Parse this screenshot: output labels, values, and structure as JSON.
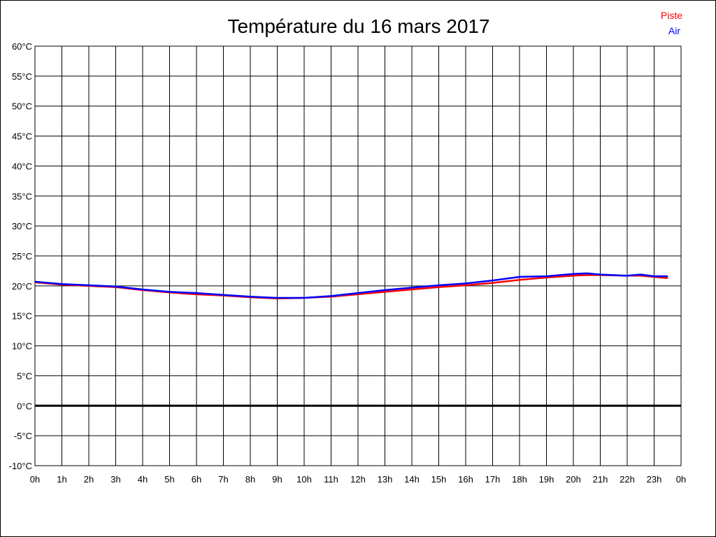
{
  "chart_data": {
    "type": "line",
    "title": "Température du 16 mars 2017",
    "xlabel": "",
    "ylabel": "",
    "x_ticks": [
      "0h",
      "1h",
      "2h",
      "3h",
      "4h",
      "5h",
      "6h",
      "7h",
      "8h",
      "9h",
      "10h",
      "11h",
      "12h",
      "13h",
      "14h",
      "15h",
      "16h",
      "17h",
      "18h",
      "19h",
      "20h",
      "21h",
      "22h",
      "23h",
      "0h"
    ],
    "y_ticks": [
      "60°C",
      "55°C",
      "50°C",
      "45°C",
      "40°C",
      "35°C",
      "30°C",
      "25°C",
      "20°C",
      "15°C",
      "10°C",
      "5°C",
      "0°C",
      "-5°C",
      "-10°C"
    ],
    "xlim": [
      0,
      24
    ],
    "ylim": [
      -10,
      60
    ],
    "grid": true,
    "legend": "top-right",
    "x": [
      0,
      1,
      2,
      3,
      4,
      5,
      6,
      7,
      8,
      9,
      10,
      11,
      12,
      13,
      14,
      15,
      16,
      17,
      18,
      19,
      20,
      20.5,
      21,
      22,
      22.5,
      23,
      23.5
    ],
    "series": [
      {
        "name": "Piste",
        "color": "#ff0000",
        "values": [
          20.6,
          20.2,
          20.0,
          19.8,
          19.3,
          18.9,
          18.6,
          18.4,
          18.1,
          17.9,
          18.0,
          18.2,
          18.6,
          19.0,
          19.4,
          19.8,
          20.1,
          20.5,
          21.0,
          21.4,
          21.7,
          21.8,
          21.8,
          21.7,
          21.7,
          21.5,
          21.3
        ]
      },
      {
        "name": "Air",
        "color": "#0000ff",
        "values": [
          20.7,
          20.3,
          20.1,
          19.9,
          19.4,
          19.0,
          18.8,
          18.5,
          18.2,
          18.0,
          18.0,
          18.3,
          18.8,
          19.3,
          19.7,
          20.1,
          20.4,
          20.9,
          21.5,
          21.6,
          22.0,
          22.1,
          21.9,
          21.7,
          21.9,
          21.6,
          21.6
        ]
      }
    ]
  }
}
